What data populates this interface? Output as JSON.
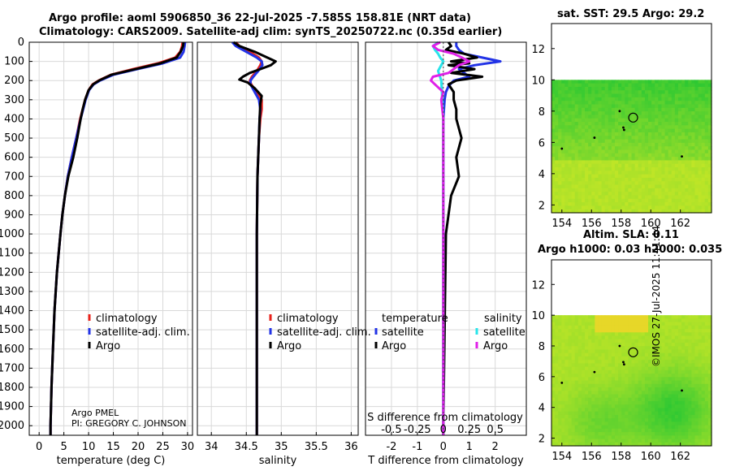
{
  "title_line1": "Argo profile: aoml 5906850_36 22-Jul-2025 -7.585S 158.81E (NRT data)",
  "title_line2": "Climatology: CARS2009. Satellite-adj clim: synTS_20250722.nc (0.35d earlier)",
  "watermark": "©IMOS 27-Jul-2025 11:41:44",
  "map1_title": "sat. SST: 29.5 Argo: 29.2",
  "map2_title1": "Altim. SLA: 0.11",
  "map2_title2": "Argo h1000: 0.03 h2000: 0.035",
  "pi_line1": "Argo PMEL",
  "pi_line2": "PI: GREGORY C. JOHNSON",
  "colors": {
    "climatology": "#e8221b",
    "satellite": "#2233e6",
    "argo": "#000000",
    "sal_sat": "#28e4ea",
    "sal_argo": "#e020e8"
  },
  "icons": {
    "float_marker": "circle-marker-icon"
  },
  "chart_data": [
    {
      "id": "temp",
      "type": "line",
      "xlabel": "temperature (deg C)",
      "xlim": [
        -2,
        31
      ],
      "ylim": [
        0,
        2050
      ],
      "xticks": [
        0,
        5,
        10,
        15,
        20,
        25,
        30
      ],
      "yticks": [
        0,
        100,
        200,
        300,
        400,
        500,
        600,
        700,
        800,
        900,
        1000,
        1100,
        1200,
        1300,
        1400,
        1500,
        1600,
        1700,
        1800,
        1900,
        2000
      ],
      "legend": [
        "climatology",
        "satellite-adj. clim.",
        "Argo"
      ],
      "series": [
        {
          "name": "climatology",
          "depth": [
            0,
            20,
            50,
            80,
            110,
            140,
            170,
            200,
            220,
            250,
            300,
            350,
            400,
            500,
            600,
            700,
            800,
            900,
            1000,
            1200,
            1400,
            1600,
            1800,
            2000,
            2050
          ],
          "values": [
            29.0,
            28.9,
            28.5,
            27.5,
            24.0,
            19.0,
            14.5,
            12.0,
            10.8,
            10.0,
            9.3,
            8.8,
            8.3,
            7.5,
            6.6,
            5.8,
            5.2,
            4.7,
            4.3,
            3.6,
            3.1,
            2.8,
            2.5,
            2.3,
            2.3
          ]
        },
        {
          "name": "satellite-adj. clim.",
          "depth": [
            0,
            20,
            50,
            80,
            110,
            140,
            170,
            200,
            220,
            250,
            300,
            350,
            400,
            500,
            600,
            700,
            800,
            900,
            1000,
            1200,
            1400,
            1600,
            1800,
            2000,
            2050
          ],
          "values": [
            29.5,
            29.4,
            29.2,
            28.5,
            25.0,
            19.8,
            15.0,
            12.3,
            11.0,
            10.1,
            9.4,
            8.9,
            8.4,
            7.5,
            6.6,
            5.8,
            5.2,
            4.7,
            4.3,
            3.6,
            3.1,
            2.8,
            2.5,
            2.3,
            2.3
          ]
        },
        {
          "name": "Argo",
          "depth": [
            0,
            20,
            50,
            80,
            110,
            140,
            170,
            200,
            220,
            250,
            300,
            350,
            400,
            500,
            600,
            700,
            800,
            900,
            1000,
            1200,
            1400,
            1600,
            1800,
            2000,
            2050
          ],
          "values": [
            29.2,
            29.1,
            28.6,
            27.8,
            24.5,
            19.5,
            14.6,
            12.1,
            10.9,
            10.0,
            9.3,
            8.8,
            8.4,
            7.7,
            6.9,
            5.9,
            5.2,
            4.7,
            4.3,
            3.6,
            3.1,
            2.8,
            2.5,
            2.3,
            2.3
          ]
        }
      ]
    },
    {
      "id": "sal",
      "type": "line",
      "xlabel": "salinity",
      "xlim": [
        33.8,
        36.1
      ],
      "ylim": [
        0,
        2050
      ],
      "xticks": [
        34,
        34.5,
        35,
        35.5,
        36
      ],
      "xtick_labels": [
        "34",
        "34.5",
        "35",
        "35.5",
        "36"
      ],
      "legend": [
        "climatology",
        "satellite-adj. clim.",
        "Argo"
      ],
      "series": [
        {
          "name": "climatology",
          "depth": [
            0,
            20,
            50,
            80,
            100,
            120,
            150,
            180,
            200,
            220,
            260,
            300,
            350,
            400,
            500,
            700,
            1000,
            1500,
            2000,
            2050
          ],
          "values": [
            34.35,
            34.4,
            34.55,
            34.68,
            34.72,
            34.7,
            34.65,
            34.58,
            34.55,
            34.57,
            34.65,
            34.72,
            34.72,
            34.7,
            34.68,
            34.66,
            34.65,
            34.65,
            34.65,
            34.65
          ]
        },
        {
          "name": "satellite-adj. clim.",
          "depth": [
            0,
            20,
            50,
            80,
            100,
            120,
            150,
            180,
            200,
            220,
            260,
            300,
            350,
            400,
            500,
            700,
            1000,
            1500,
            2000,
            2050
          ],
          "values": [
            34.3,
            34.35,
            34.5,
            34.65,
            34.72,
            34.73,
            34.67,
            34.6,
            34.56,
            34.56,
            34.62,
            34.68,
            34.7,
            34.69,
            34.68,
            34.66,
            34.65,
            34.65,
            34.65,
            34.65
          ]
        },
        {
          "name": "Argo",
          "depth": [
            0,
            20,
            50,
            80,
            100,
            120,
            140,
            160,
            180,
            195,
            210,
            240,
            280,
            320,
            400,
            500,
            700,
            1000,
            1500,
            2000,
            2050
          ],
          "values": [
            34.32,
            34.4,
            34.62,
            34.8,
            34.92,
            34.85,
            34.7,
            34.55,
            34.45,
            34.4,
            34.52,
            34.62,
            34.72,
            34.7,
            34.69,
            34.68,
            34.66,
            34.65,
            34.65,
            34.65,
            34.65
          ]
        }
      ]
    },
    {
      "id": "diff",
      "type": "line",
      "xlabel": "T difference from climatology",
      "xlabel_top": "S difference from climatology",
      "xlim": [
        -3,
        3.2
      ],
      "ylim": [
        0,
        2050
      ],
      "xticks": [
        -2,
        -1,
        0,
        1,
        2
      ],
      "xtick_labels": [
        "-2",
        "-1",
        "0",
        "1",
        "2"
      ],
      "sal_ticks": [
        -0.5,
        -0.25,
        0,
        0.25,
        0.5
      ],
      "sal_tick_labels": [
        "-0.5",
        "-0.25",
        "0",
        "0.25",
        "0.5"
      ],
      "legend_temperature_title": "temperature",
      "legend_salinity_title": "salinity",
      "legend_temperature": [
        "satellite",
        "Argo"
      ],
      "legend_salinity": [
        "satellite",
        "Argo"
      ],
      "series": [
        {
          "name": "T satellite",
          "color": "satellite",
          "depth": [
            0,
            20,
            40,
            60,
            80,
            100,
            120,
            140,
            160,
            180,
            200,
            230,
            260,
            300,
            400,
            600,
            800,
            1000,
            1500,
            2000,
            2050
          ],
          "values": [
            0.5,
            0.5,
            0.6,
            0.8,
            1.5,
            2.2,
            1.2,
            0.6,
            0.8,
            1.0,
            0.4,
            0.2,
            0.1,
            0.05,
            0.0,
            0.0,
            0.0,
            0.0,
            0.0,
            0.0,
            0.0
          ]
        },
        {
          "name": "T Argo",
          "color": "argo",
          "depth": [
            0,
            20,
            40,
            60,
            80,
            100,
            110,
            120,
            140,
            160,
            180,
            200,
            220,
            260,
            300,
            350,
            400,
            500,
            600,
            700,
            800,
            1000,
            1500,
            2000,
            2050
          ],
          "values": [
            0.2,
            0.3,
            0.1,
            0.8,
            1.3,
            0.3,
            1.0,
            0.2,
            1.2,
            0.3,
            1.5,
            0.5,
            0.2,
            0.4,
            0.4,
            0.5,
            0.5,
            0.7,
            0.5,
            0.6,
            0.3,
            0.1,
            0.05,
            0.0,
            0.0
          ]
        },
        {
          "name": "S satellite",
          "color": "sal_sat",
          "depth": [
            0,
            20,
            40,
            60,
            80,
            100,
            150,
            200,
            300,
            400,
            600,
            800,
            1000,
            1500,
            2000,
            2050
          ],
          "values": [
            -0.05,
            -0.1,
            -0.08,
            -0.05,
            -0.03,
            0.0,
            -0.05,
            -0.02,
            -0.01,
            0.0,
            0.0,
            0.0,
            0.0,
            0.0,
            0.0,
            0.0
          ]
        },
        {
          "name": "S Argo",
          "color": "sal_argo",
          "depth": [
            0,
            20,
            40,
            60,
            80,
            100,
            120,
            140,
            160,
            180,
            200,
            230,
            260,
            300,
            400,
            600,
            800,
            1000,
            1500,
            2000,
            2050
          ],
          "values": [
            -0.03,
            -0.1,
            -0.05,
            0.1,
            0.18,
            0.25,
            0.15,
            0.1,
            0.05,
            -0.1,
            -0.12,
            -0.06,
            0.0,
            -0.02,
            0.0,
            0.0,
            0.0,
            0.0,
            0.0,
            0.0,
            0.0
          ]
        }
      ]
    },
    {
      "id": "map1",
      "type": "heatmap",
      "title": "sat. SST: 29.5 Argo: 29.2",
      "xlim": [
        153.3,
        164.1
      ],
      "ylim": [
        1.5,
        13.6
      ],
      "data_ylim": [
        1.5,
        10.0
      ],
      "xticks": [
        154,
        156,
        158,
        160,
        162
      ],
      "yticks": [
        2,
        4,
        6,
        8,
        10,
        12
      ],
      "float": [
        158.81,
        7.585
      ]
    },
    {
      "id": "map2",
      "type": "heatmap",
      "title": "Altim. SLA: 0.11",
      "subtitle": "Argo h1000: 0.03 h2000: 0.035",
      "xlim": [
        153.3,
        164.1
      ],
      "ylim": [
        1.5,
        13.6
      ],
      "data_ylim": [
        1.5,
        10.0
      ],
      "xticks": [
        154,
        156,
        158,
        160,
        162
      ],
      "yticks": [
        2,
        4,
        6,
        8,
        10,
        12
      ],
      "float": [
        158.81,
        7.585
      ]
    }
  ]
}
